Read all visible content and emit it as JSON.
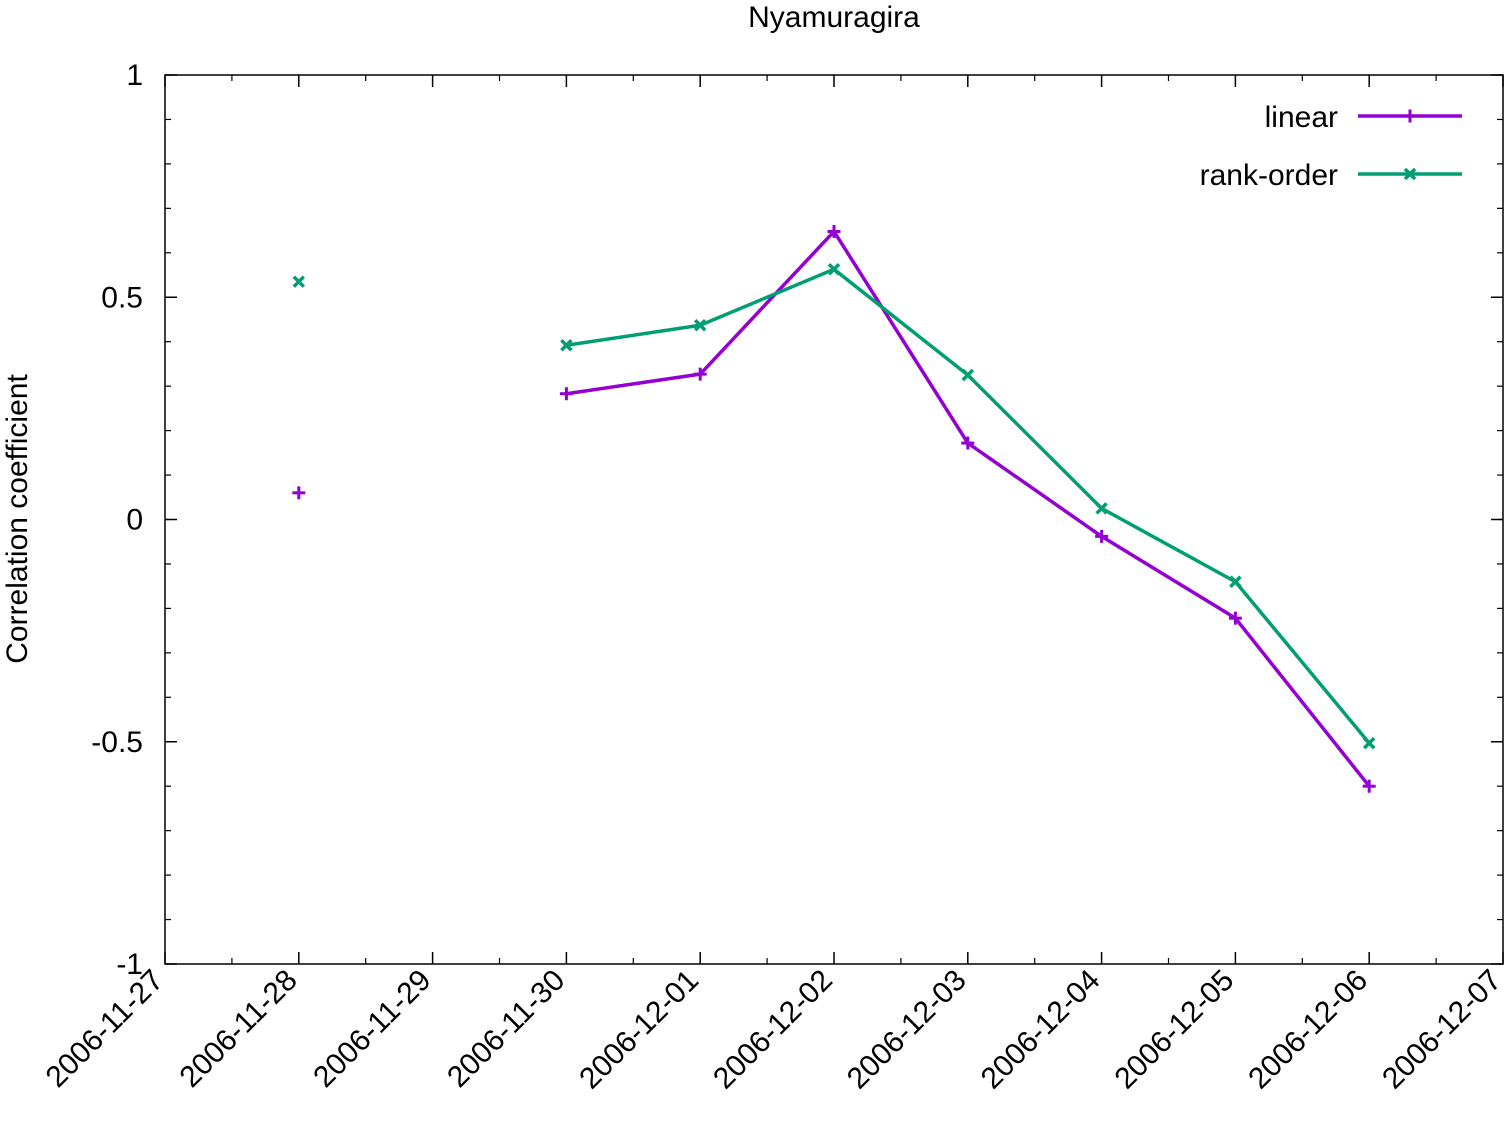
{
  "chart_data": {
    "type": "line",
    "title": "Nyamuragira",
    "xlabel": "",
    "ylabel": "Correlation coefficient",
    "x_ticks": [
      "2006-11-27",
      "2006-11-28",
      "2006-11-29",
      "2006-11-30",
      "2006-12-01",
      "2006-12-02",
      "2006-12-03",
      "2006-12-04",
      "2006-12-05",
      "2006-12-06",
      "2006-12-07"
    ],
    "y_ticks": [
      "-1",
      "-0.5",
      "0",
      "0.5",
      "1"
    ],
    "xlim": [
      "2006-11-27",
      "2006-12-07"
    ],
    "ylim": [
      -1,
      1
    ],
    "grid": false,
    "legend_position": "top-right",
    "series": [
      {
        "name": "linear",
        "color": "#9400d3",
        "marker": "plus",
        "x": [
          "2006-11-28",
          "2006-11-30",
          "2006-12-01",
          "2006-12-02",
          "2006-12-03",
          "2006-12-04",
          "2006-12-05",
          "2006-12-06"
        ],
        "y": [
          0.06,
          0.283,
          0.327,
          0.648,
          0.172,
          -0.038,
          -0.222,
          -0.6
        ],
        "segments": [
          [
            0
          ],
          [
            1,
            2,
            3,
            4,
            5,
            6,
            7
          ]
        ]
      },
      {
        "name": "rank-order",
        "color": "#009e73",
        "marker": "cross",
        "x": [
          "2006-11-28",
          "2006-11-30",
          "2006-12-01",
          "2006-12-02",
          "2006-12-03",
          "2006-12-04",
          "2006-12-05",
          "2006-12-06"
        ],
        "y": [
          0.535,
          0.392,
          0.437,
          0.563,
          0.325,
          0.025,
          -0.14,
          -0.503
        ],
        "segments": [
          [
            0
          ],
          [
            1,
            2,
            3,
            4,
            5,
            6,
            7
          ]
        ]
      }
    ]
  }
}
